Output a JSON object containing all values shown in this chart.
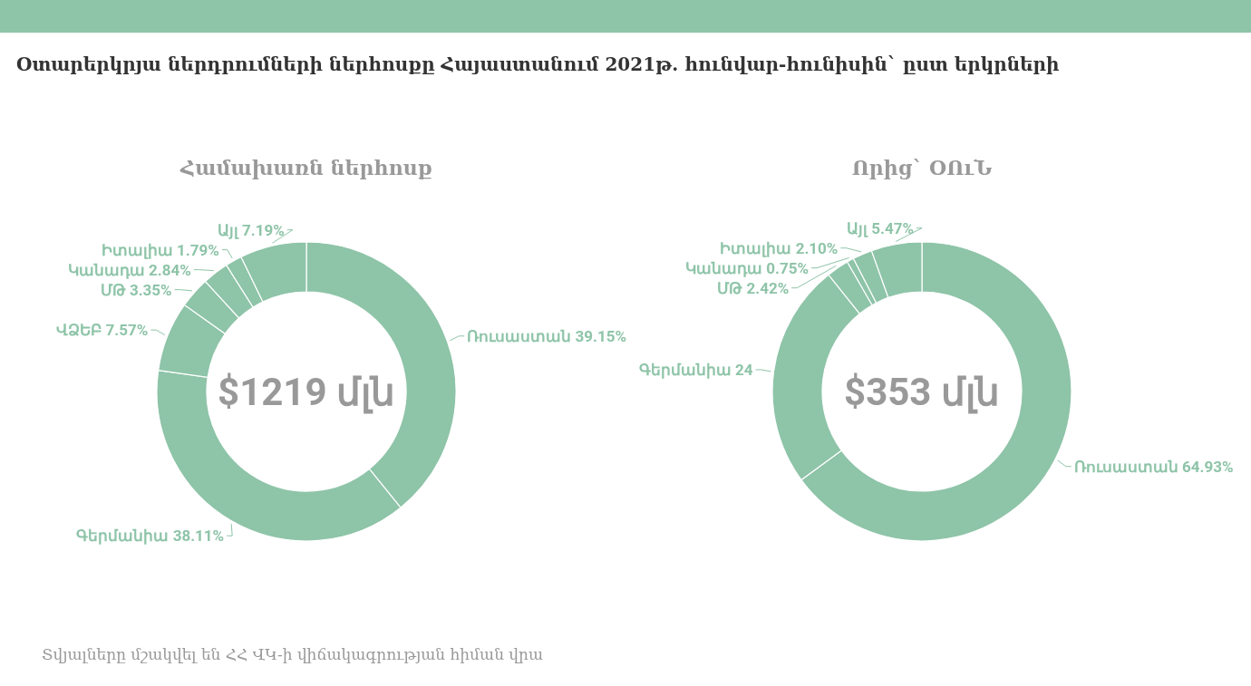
{
  "chart_data": [
    {
      "type": "donut",
      "title": "Օտարերկրյա ներդրումների ներհոսքը Հայաստանում 2021թ. հունվար-հունիսին` ըստ  երկրների",
      "subtitle": "Համախառն ներհոսք",
      "categories": [
        "Ռուսաստան",
        "Գերմանիա",
        "ՎՁԵԲ",
        "ՄԹ",
        "Կանադա",
        "Իտալիա",
        "Այլ"
      ],
      "values": [
        39.15,
        38.11,
        7.57,
        3.35,
        2.84,
        1.79,
        7.19
      ],
      "colors": [
        "#8ec4a8",
        "#8ec4a8",
        "#8ec4a8",
        "#8ec4a8",
        "#8ec4a8",
        "#8ec4a8",
        "#8ec4a8"
      ],
      "value_labels": [
        "39.15%",
        "38.11%",
        "7.57%",
        "3.35%",
        "2.84%",
        "1.79%",
        "7.19%"
      ],
      "annotations": [
        "$1219 մլն",
        "Տվյալները մշակվել են ՀՀ ՎԿ-ի վիճակագրության հիման վրա"
      ]
    },
    {
      "type": "donut",
      "subtitle": "Որից` ՕՈւՆ",
      "categories": [
        "Ռուսաստան",
        "Գերմանիա",
        "ՄԹ",
        "Կանադա",
        "Իտալիա",
        "Այլ"
      ],
      "values": [
        64.93,
        24.33,
        2.42,
        0.75,
        2.1,
        5.47
      ],
      "colors": [
        "#8ec4a8",
        "#8ec4a8",
        "#8ec4a8",
        "#8ec4a8",
        "#8ec4a8",
        "#8ec4a8"
      ],
      "value_labels": [
        "64.93%",
        "24",
        "2.42%",
        "0.75%",
        "2.10%",
        "5.47%"
      ],
      "annotations": [
        "$353 մլն"
      ]
    }
  ]
}
